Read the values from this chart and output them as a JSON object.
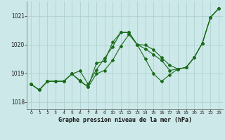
{
  "title": "Graphe pression niveau de la mer (hPa)",
  "bg_color": "#cce8e8",
  "line_color": "#1a6b1a",
  "grid_color": "#aacece",
  "ylim": [
    1017.75,
    1021.5
  ],
  "yticks": [
    1018,
    1019,
    1020,
    1021
  ],
  "xlim": [
    -0.5,
    23.5
  ],
  "xticks": [
    0,
    1,
    2,
    3,
    4,
    5,
    6,
    7,
    8,
    9,
    10,
    11,
    12,
    13,
    14,
    15,
    16,
    17,
    18,
    19,
    20,
    21,
    22,
    23
  ],
  "series": [
    [
      1018.62,
      1018.42,
      1018.72,
      1018.72,
      1018.72,
      1018.98,
      1018.75,
      1018.52,
      1018.98,
      1019.1,
      1019.45,
      1019.95,
      1020.35,
      1020.0,
      1019.85,
      1019.65,
      1019.45,
      1019.1,
      1019.15,
      1019.2,
      1019.55,
      1020.05,
      1020.95,
      1021.25
    ],
    [
      1018.62,
      1018.42,
      1018.72,
      1018.72,
      1018.72,
      1018.98,
      1018.72,
      1018.52,
      1019.35,
      1019.42,
      1020.08,
      1020.42,
      1020.42,
      1020.0,
      1019.5,
      1018.98,
      1018.72,
      1018.95,
      1019.15,
      1019.2,
      1019.55,
      1020.05,
      1020.95,
      1021.25
    ],
    [
      1018.62,
      1018.42,
      1018.72,
      1018.72,
      1018.72,
      1018.98,
      1019.08,
      1018.62,
      1019.12,
      1019.52,
      1019.92,
      1020.42,
      1020.42,
      1020.0,
      1019.98,
      1019.82,
      1019.55,
      1019.28,
      1019.15,
      1019.2,
      1019.55,
      1020.05,
      1020.95,
      1021.25
    ]
  ]
}
